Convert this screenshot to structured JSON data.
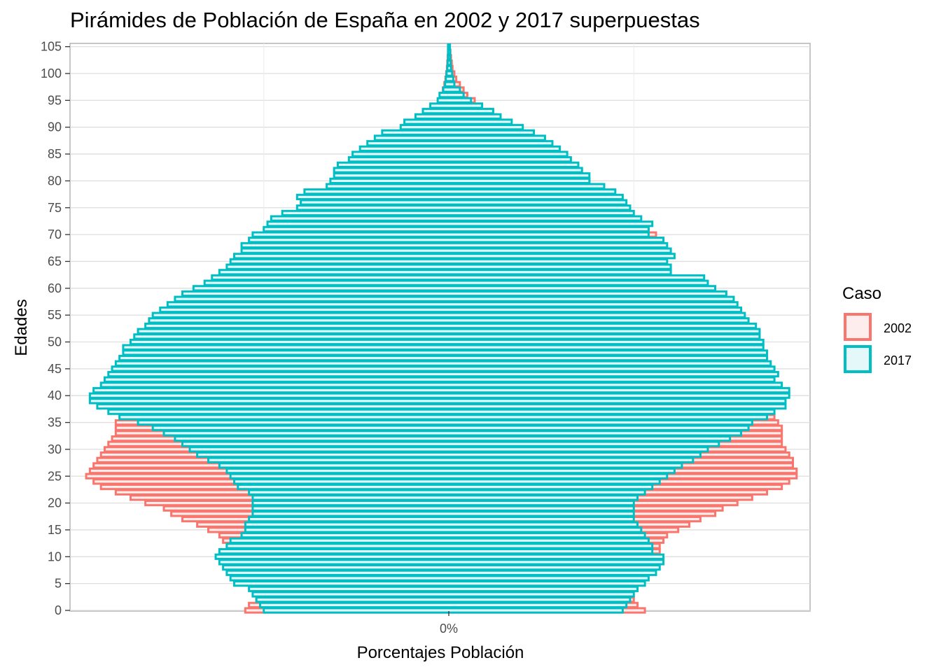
{
  "chart_data": {
    "type": "bar",
    "orientation": "horizontal-pyramid",
    "title": "Pirámides de Población de España en 2002 y 2017 superpuestas",
    "xlabel": "Porcentajes Población",
    "ylabel": "Edades",
    "x_tick_labels": [
      "0%"
    ],
    "y_ticks": [
      0,
      5,
      10,
      15,
      20,
      25,
      30,
      35,
      40,
      45,
      50,
      55,
      60,
      65,
      70,
      75,
      80,
      85,
      90,
      95,
      100,
      105
    ],
    "ylim": [
      0,
      105
    ],
    "xlim": [
      -1.0,
      1.0
    ],
    "grid": true,
    "legend": {
      "title": "Caso",
      "position": "right"
    },
    "colors": {
      "2002": "#f8766d",
      "2017": "#00bfc4",
      "2002_fill": "#fdeeed",
      "2017_fill": "#e5f8f9"
    },
    "series": [
      {
        "name": "2002",
        "left": [
          0.55,
          0.54,
          0.52,
          0.52,
          0.52,
          0.53,
          0.55,
          0.56,
          0.57,
          0.59,
          0.6,
          0.6,
          0.6,
          0.61,
          0.62,
          0.65,
          0.68,
          0.72,
          0.75,
          0.77,
          0.82,
          0.86,
          0.9,
          0.94,
          0.96,
          0.98,
          0.97,
          0.96,
          0.95,
          0.94,
          0.93,
          0.92,
          0.91,
          0.9,
          0.9,
          0.9,
          0.88,
          0.87,
          0.85,
          0.82,
          0.78,
          0.75,
          0.72,
          0.7,
          0.68,
          0.67,
          0.66,
          0.65,
          0.64,
          0.63,
          0.62,
          0.61,
          0.6,
          0.6,
          0.6,
          0.6,
          0.6,
          0.59,
          0.57,
          0.55,
          0.52,
          0.5,
          0.5,
          0.49,
          0.48,
          0.48,
          0.47,
          0.46,
          0.45,
          0.44,
          0.43,
          0.42,
          0.4,
          0.38,
          0.36,
          0.34,
          0.32,
          0.3,
          0.27,
          0.25,
          0.23,
          0.21,
          0.19,
          0.17,
          0.15,
          0.13,
          0.11,
          0.1,
          0.08,
          0.07,
          0.06,
          0.05,
          0.04,
          0.035,
          0.03,
          0.025,
          0.02,
          0.016,
          0.012,
          0.009,
          0.007,
          0.005,
          0.004,
          0.003,
          0.002,
          0.002
        ],
        "right": [
          0.53,
          0.51,
          0.5,
          0.49,
          0.49,
          0.5,
          0.52,
          0.53,
          0.54,
          0.56,
          0.57,
          0.57,
          0.57,
          0.58,
          0.59,
          0.62,
          0.65,
          0.68,
          0.72,
          0.74,
          0.78,
          0.82,
          0.86,
          0.9,
          0.92,
          0.94,
          0.94,
          0.93,
          0.93,
          0.92,
          0.91,
          0.9,
          0.9,
          0.9,
          0.9,
          0.89,
          0.88,
          0.87,
          0.86,
          0.84,
          0.8,
          0.77,
          0.74,
          0.72,
          0.7,
          0.69,
          0.68,
          0.67,
          0.66,
          0.65,
          0.64,
          0.63,
          0.63,
          0.63,
          0.62,
          0.62,
          0.62,
          0.61,
          0.6,
          0.59,
          0.58,
          0.58,
          0.58,
          0.58,
          0.58,
          0.58,
          0.58,
          0.58,
          0.58,
          0.58,
          0.56,
          0.54,
          0.52,
          0.5,
          0.49,
          0.48,
          0.46,
          0.44,
          0.42,
          0.4,
          0.38,
          0.35,
          0.33,
          0.31,
          0.29,
          0.27,
          0.25,
          0.23,
          0.21,
          0.19,
          0.17,
          0.15,
          0.13,
          0.11,
          0.09,
          0.07,
          0.05,
          0.04,
          0.03,
          0.02,
          0.015,
          0.01,
          0.008,
          0.006,
          0.004,
          0.003
        ]
      },
      {
        "name": "2017",
        "left": [
          0.5,
          0.51,
          0.52,
          0.53,
          0.54,
          0.58,
          0.59,
          0.6,
          0.61,
          0.62,
          0.63,
          0.62,
          0.6,
          0.59,
          0.56,
          0.55,
          0.55,
          0.54,
          0.53,
          0.53,
          0.53,
          0.53,
          0.54,
          0.57,
          0.58,
          0.59,
          0.6,
          0.62,
          0.65,
          0.68,
          0.7,
          0.72,
          0.74,
          0.77,
          0.8,
          0.84,
          0.89,
          0.92,
          0.95,
          0.97,
          0.97,
          0.96,
          0.94,
          0.93,
          0.92,
          0.91,
          0.9,
          0.89,
          0.88,
          0.88,
          0.86,
          0.85,
          0.84,
          0.82,
          0.81,
          0.8,
          0.78,
          0.76,
          0.74,
          0.72,
          0.69,
          0.66,
          0.64,
          0.62,
          0.6,
          0.59,
          0.58,
          0.56,
          0.56,
          0.54,
          0.53,
          0.5,
          0.49,
          0.48,
          0.45,
          0.41,
          0.4,
          0.41,
          0.39,
          0.33,
          0.32,
          0.31,
          0.31,
          0.3,
          0.27,
          0.26,
          0.24,
          0.22,
          0.2,
          0.18,
          0.13,
          0.12,
          0.09,
          0.07,
          0.05,
          0.03,
          0.025,
          0.015,
          0.01,
          0.008,
          0.006,
          0.004,
          0.003,
          0.002,
          0.002,
          0.002
        ],
        "right": [
          0.47,
          0.48,
          0.49,
          0.5,
          0.51,
          0.53,
          0.54,
          0.56,
          0.57,
          0.58,
          0.58,
          0.55,
          0.55,
          0.54,
          0.53,
          0.52,
          0.51,
          0.5,
          0.5,
          0.5,
          0.5,
          0.51,
          0.53,
          0.55,
          0.57,
          0.59,
          0.61,
          0.63,
          0.66,
          0.68,
          0.7,
          0.73,
          0.76,
          0.79,
          0.81,
          0.82,
          0.86,
          0.88,
          0.91,
          0.91,
          0.92,
          0.92,
          0.9,
          0.88,
          0.89,
          0.88,
          0.87,
          0.86,
          0.86,
          0.85,
          0.85,
          0.84,
          0.84,
          0.83,
          0.81,
          0.8,
          0.79,
          0.78,
          0.77,
          0.75,
          0.72,
          0.7,
          0.69,
          0.6,
          0.6,
          0.59,
          0.61,
          0.6,
          0.59,
          0.58,
          0.54,
          0.54,
          0.55,
          0.52,
          0.5,
          0.49,
          0.48,
          0.47,
          0.45,
          0.42,
          0.38,
          0.38,
          0.36,
          0.35,
          0.33,
          0.32,
          0.3,
          0.28,
          0.26,
          0.23,
          0.2,
          0.17,
          0.14,
          0.12,
          0.09,
          0.06,
          0.04,
          0.03,
          0.015,
          0.012,
          0.009,
          0.006,
          0.005,
          0.004,
          0.004,
          0.003
        ]
      }
    ]
  }
}
